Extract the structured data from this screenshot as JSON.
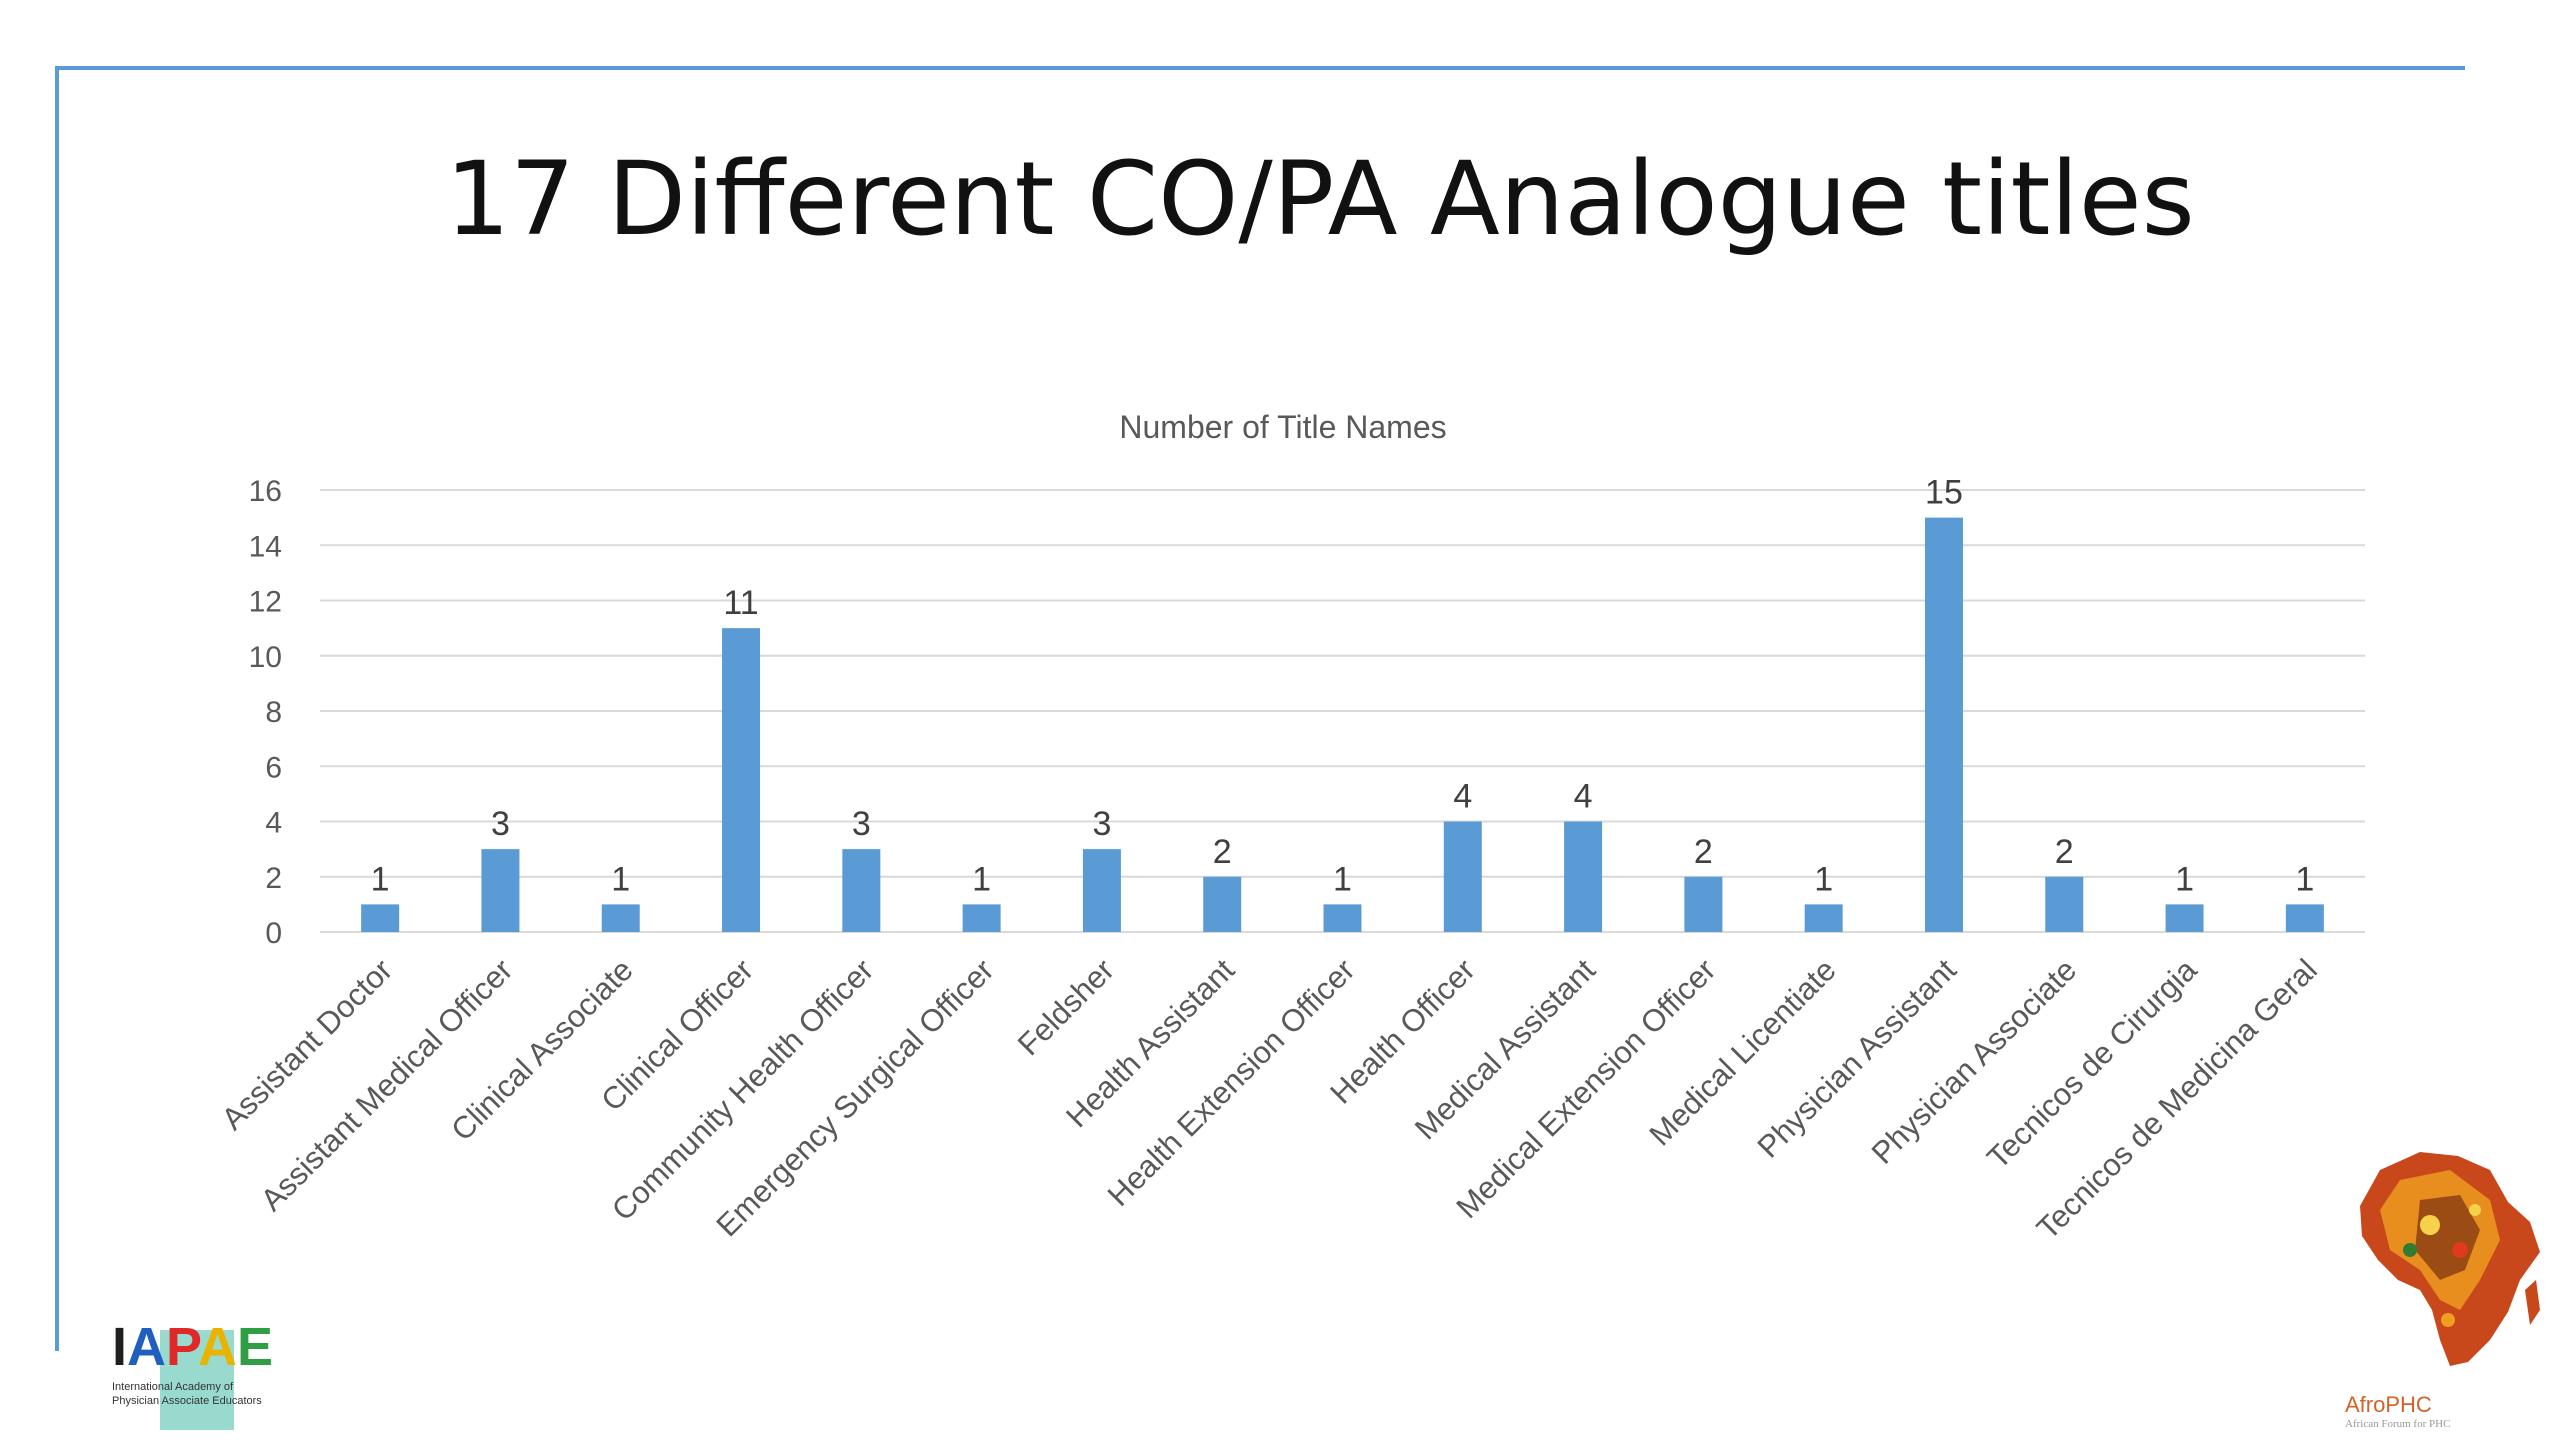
{
  "slide": {
    "title": "17 Different CO/PA Analogue titles"
  },
  "logos": {
    "left": {
      "letters": [
        "I",
        "A",
        "P",
        "A",
        "E"
      ],
      "letter_colors": [
        "#1f1f1f",
        "#1f5fbf",
        "#e02828",
        "#e8b400",
        "#2f9e44"
      ],
      "subtitle_line1": "International Academy of",
      "subtitle_line2": "Physician Associate Educators"
    },
    "right": {
      "name": "AfroPHC",
      "subtitle": "African Forum for PHC"
    }
  },
  "colors": {
    "bar": "#5b9bd5",
    "frame": "#5b9bd5",
    "grid": "#d9d9d9"
  },
  "chart_data": {
    "type": "bar",
    "title": "Number of Title Names",
    "categories": [
      "Assistant Doctor",
      "Assistant Medical Officer",
      "Clinical Associate",
      "Clinical Officer",
      "Community Health Officer",
      "Emergency Surgical Officer",
      "Feldsher",
      "Health Assistant",
      "Health Extension Officer",
      "Health Officer",
      "Medical Assistant",
      "Medical Extension Officer",
      "Medical Licentiate",
      "Physician Assistant",
      "Physician Associate",
      "Tecnicos de Cirurgia",
      "Tecnicos de Medicina Geral"
    ],
    "values": [
      1,
      3,
      1,
      11,
      3,
      1,
      3,
      2,
      1,
      4,
      4,
      2,
      1,
      15,
      2,
      1,
      1
    ],
    "ylim": [
      0,
      16
    ],
    "yticks": [
      0,
      2,
      4,
      6,
      8,
      10,
      12,
      14,
      16
    ],
    "xlabel": "",
    "ylabel": "",
    "grid": true,
    "data_labels": true
  }
}
